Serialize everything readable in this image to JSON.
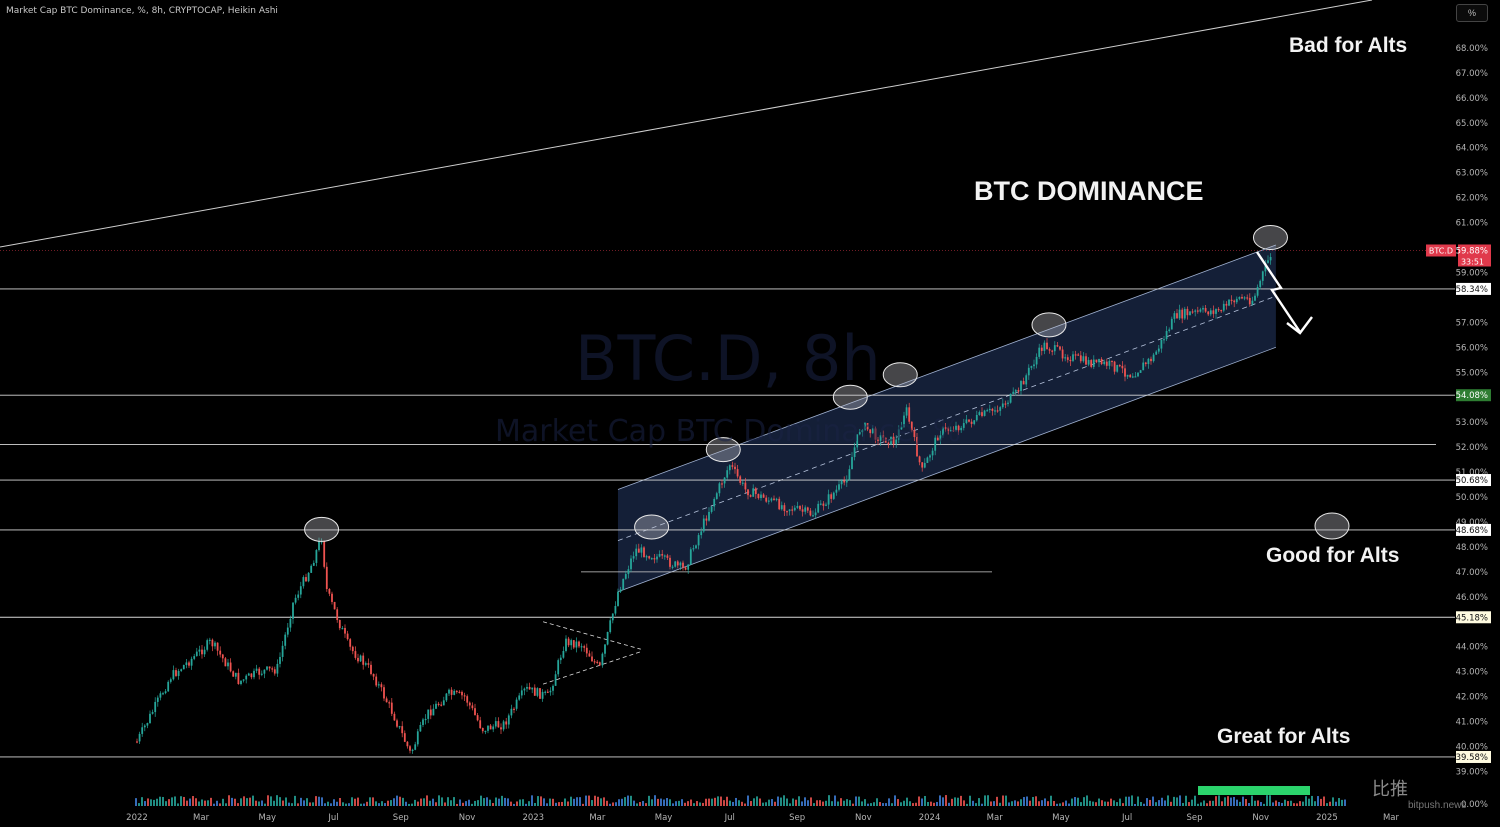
{
  "header": {
    "title": "Market Cap BTC Dominance, %, 8h, CRYPTOCAP, Heikin Ashi",
    "pct_button": "%"
  },
  "watermark": {
    "symbol": "BTC.D, 8h",
    "name": "Market Cap BTC Dominance, %"
  },
  "annotations": {
    "chart_title": "BTC DOMINANCE",
    "bad": "Bad for Alts",
    "good": "Good for Alts",
    "great": "Great for Alts"
  },
  "branding": {
    "logo": "比推",
    "site": "bitpush.news"
  },
  "colors": {
    "background": "#000000",
    "up": "#26a69a",
    "down": "#ef5350",
    "channel_fill": "#1b2a4a",
    "current_price": "#e0394b",
    "axis_text": "#b5b5b5"
  },
  "chart_data": {
    "type": "candlestick",
    "title": "BTC DOMINANCE",
    "ylabel": "%",
    "ylim": [
      0,
      69
    ],
    "y_ticks": [
      "68.00%",
      "67.00%",
      "66.00%",
      "65.00%",
      "64.00%",
      "63.00%",
      "62.00%",
      "61.00%",
      "59.00%",
      "57.00%",
      "56.00%",
      "55.00%",
      "53.00%",
      "52.00%",
      "51.00%",
      "50.00%",
      "49.00%",
      "48.00%",
      "47.00%",
      "46.00%",
      "44.00%",
      "43.00%",
      "42.00%",
      "41.00%",
      "40.00%",
      "39.00%",
      "0.00%"
    ],
    "x_ticks": [
      "2022",
      "Mar",
      "May",
      "Jul",
      "Sep",
      "Nov",
      "2023",
      "Mar",
      "May",
      "Jul",
      "Sep",
      "Nov",
      "2024",
      "Mar",
      "May",
      "Jul",
      "Sep",
      "Nov",
      "2025",
      "Mar"
    ],
    "series_path": [
      [
        "2022-01-01",
        40.2
      ],
      [
        "2022-02-01",
        42.8
      ],
      [
        "2022-02-20",
        43.5
      ],
      [
        "2022-03-10",
        44.2
      ],
      [
        "2022-04-05",
        42.6
      ],
      [
        "2022-04-25",
        43.0
      ],
      [
        "2022-05-10",
        43.1
      ],
      [
        "2022-05-25",
        45.8
      ],
      [
        "2022-06-10",
        47.2
      ],
      [
        "2022-06-20",
        48.4
      ],
      [
        "2022-06-25",
        46.2
      ],
      [
        "2022-07-15",
        44.0
      ],
      [
        "2022-08-05",
        43.0
      ],
      [
        "2022-08-25",
        41.3
      ],
      [
        "2022-09-10",
        39.7
      ],
      [
        "2022-09-25",
        41.3
      ],
      [
        "2022-10-15",
        42.1
      ],
      [
        "2022-10-30",
        42.0
      ],
      [
        "2022-11-15",
        40.7
      ],
      [
        "2022-12-05",
        40.9
      ],
      [
        "2022-12-25",
        42.3
      ],
      [
        "2023-01-15",
        42.0
      ],
      [
        "2023-01-30",
        44.2
      ],
      [
        "2023-02-15",
        44.1
      ],
      [
        "2023-03-03",
        43.1
      ],
      [
        "2023-03-20",
        46.2
      ],
      [
        "2023-04-05",
        47.9
      ],
      [
        "2023-04-25",
        47.6
      ],
      [
        "2023-05-20",
        47.1
      ],
      [
        "2023-06-15",
        49.8
      ],
      [
        "2023-07-01",
        51.3
      ],
      [
        "2023-07-15",
        50.3
      ],
      [
        "2023-08-15",
        49.7
      ],
      [
        "2023-09-15",
        49.3
      ],
      [
        "2023-10-15",
        50.6
      ],
      [
        "2023-10-30",
        52.9
      ],
      [
        "2023-11-15",
        52.4
      ],
      [
        "2023-12-01",
        52.2
      ],
      [
        "2023-12-10",
        53.6
      ],
      [
        "2023-12-25",
        51.0
      ],
      [
        "2024-01-10",
        52.6
      ],
      [
        "2024-02-01",
        52.9
      ],
      [
        "2024-03-01",
        53.5
      ],
      [
        "2024-03-20",
        54.1
      ],
      [
        "2024-04-15",
        56.1
      ],
      [
        "2024-05-05",
        55.7
      ],
      [
        "2024-05-25",
        55.4
      ],
      [
        "2024-06-15",
        55.3
      ],
      [
        "2024-07-05",
        54.9
      ],
      [
        "2024-07-25",
        55.6
      ],
      [
        "2024-08-15",
        57.3
      ],
      [
        "2024-09-05",
        57.4
      ],
      [
        "2024-09-25",
        57.5
      ],
      [
        "2024-10-10",
        58.0
      ],
      [
        "2024-10-25",
        57.9
      ],
      [
        "2024-11-05",
        59.2
      ],
      [
        "2024-11-12",
        59.88
      ]
    ],
    "volume_indicator": "bottom colored bars",
    "horizontal_levels": [
      {
        "value": 58.34,
        "label": "58.34%",
        "style": "label-white"
      },
      {
        "value": 54.08,
        "label": "54.08%",
        "style": "label-green"
      },
      {
        "value": 52.1,
        "label": "",
        "style": "line-only"
      },
      {
        "value": 50.68,
        "label": "50.68%",
        "style": "label-white"
      },
      {
        "value": 48.68,
        "label": "48.68%",
        "style": "label-white"
      },
      {
        "value": 45.18,
        "label": "45.18%",
        "style": "label-yellow"
      },
      {
        "value": 39.58,
        "label": "39.58%",
        "style": "label-yellow"
      }
    ],
    "channel": {
      "start_date": "2023-03-20",
      "end_date": "2024-11-15",
      "upper_start": 50.3,
      "upper_end": 60.1,
      "lower_start": 46.2,
      "lower_end": 56.0
    },
    "current_price": {
      "symbol": "BTC.D",
      "value": "59.88%",
      "countdown": "33:51"
    },
    "highlighted_peaks": [
      "2022-06-20",
      "2023-04-20",
      "2023-06-25",
      "2023-10-20",
      "2023-12-05",
      "2024-04-20",
      "2024-11-10"
    ]
  }
}
